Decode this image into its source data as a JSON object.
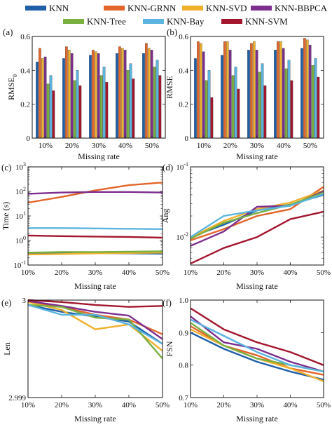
{
  "legend": {
    "entries": [
      {
        "name": "KNN",
        "color": "#1f5fa8"
      },
      {
        "name": "KNN-GRNN",
        "color": "#e3652a"
      },
      {
        "name": "KNN-SVD",
        "color": "#efb02c"
      },
      {
        "name": "KNN-BBPCA",
        "color": "#7d2e8e"
      },
      {
        "name": "KNN-Tree",
        "color": "#79b040"
      },
      {
        "name": "KNN-Bay",
        "color": "#5ab4df"
      },
      {
        "name": "KNN-SVM",
        "color": "#a3162d"
      }
    ]
  },
  "chart_data": [
    {
      "panel": "(a)",
      "type": "bar",
      "categories": [
        "10%",
        "20%",
        "30%",
        "40%",
        "50%"
      ],
      "xlabel": "Missing rate",
      "ylabel": "RMSE",
      "ylabel_subscript": "0",
      "ylim": [
        0,
        0.6
      ],
      "yticks": [
        0,
        0.2,
        0.4,
        0.6
      ],
      "yticklabels": [
        "0",
        "0.2",
        "0.4",
        "0.6"
      ],
      "series": [
        {
          "name": "KNN",
          "values": [
            0.45,
            0.47,
            0.49,
            0.5,
            0.5
          ]
        },
        {
          "name": "KNN-GRNN",
          "values": [
            0.53,
            0.54,
            0.52,
            0.54,
            0.56
          ]
        },
        {
          "name": "KNN-SVD",
          "values": [
            0.47,
            0.52,
            0.51,
            0.53,
            0.53
          ]
        },
        {
          "name": "KNN-BBPCA",
          "values": [
            0.48,
            0.5,
            0.5,
            0.52,
            0.52
          ]
        },
        {
          "name": "KNN-Tree",
          "values": [
            0.32,
            0.34,
            0.37,
            0.4,
            0.42
          ]
        },
        {
          "name": "KNN-Bay",
          "values": [
            0.37,
            0.4,
            0.42,
            0.44,
            0.46
          ]
        },
        {
          "name": "KNN-SVM",
          "values": [
            0.28,
            0.31,
            0.33,
            0.35,
            0.37
          ]
        }
      ]
    },
    {
      "panel": "(b)",
      "type": "bar",
      "categories": [
        "10%",
        "20%",
        "30%",
        "40%",
        "50%"
      ],
      "xlabel": "Missing rate",
      "ylabel": "RMSE",
      "ylim": [
        0,
        0.6
      ],
      "yticks": [
        0,
        0.2,
        0.4,
        0.6
      ],
      "yticklabels": [
        "0",
        "0.2",
        "0.4",
        "0.6"
      ],
      "series": [
        {
          "name": "KNN",
          "values": [
            0.47,
            0.49,
            0.52,
            0.52,
            0.53
          ]
        },
        {
          "name": "KNN-GRNN",
          "values": [
            0.57,
            0.57,
            0.56,
            0.57,
            0.59
          ]
        },
        {
          "name": "KNN-SVD",
          "values": [
            0.56,
            0.57,
            0.57,
            0.57,
            0.58
          ]
        },
        {
          "name": "KNN-BBPCA",
          "values": [
            0.51,
            0.52,
            0.52,
            0.53,
            0.55
          ]
        },
        {
          "name": "KNN-Tree",
          "values": [
            0.34,
            0.37,
            0.39,
            0.41,
            0.43
          ]
        },
        {
          "name": "KNN-Bay",
          "values": [
            0.4,
            0.42,
            0.44,
            0.46,
            0.47
          ]
        },
        {
          "name": "KNN-SVM",
          "values": [
            0.24,
            0.29,
            0.31,
            0.34,
            0.36
          ]
        }
      ]
    },
    {
      "panel": "(c)",
      "type": "line",
      "log_y": true,
      "x": [
        10,
        20,
        30,
        40,
        50
      ],
      "xticklabels": [
        "10%",
        "20%",
        "30%",
        "40%",
        "50%"
      ],
      "xlabel": "Missing rate",
      "ylabel": "Time (s)",
      "ylim": [
        0.1,
        1000
      ],
      "yticks": [
        0.1,
        1,
        10,
        100,
        1000
      ],
      "yticklabels": [
        "10^-1",
        "10^0",
        "10^1",
        "10^2",
        "10^3"
      ],
      "series": [
        {
          "name": "KNN",
          "values": [
            0.3,
            0.31,
            0.31,
            0.3,
            0.29
          ]
        },
        {
          "name": "KNN-GRNN",
          "values": [
            35,
            60,
            110,
            180,
            230
          ]
        },
        {
          "name": "KNN-SVD",
          "values": [
            0.27,
            0.28,
            0.3,
            0.31,
            0.32
          ]
        },
        {
          "name": "KNN-BBPCA",
          "values": [
            80,
            90,
            95,
            95,
            90
          ]
        },
        {
          "name": "KNN-Tree",
          "values": [
            0.32,
            0.34,
            0.34,
            0.35,
            0.36
          ]
        },
        {
          "name": "KNN-Bay",
          "values": [
            3.2,
            3.2,
            3.1,
            3.0,
            2.9
          ]
        },
        {
          "name": "KNN-SVM",
          "values": [
            1.6,
            1.5,
            1.45,
            1.4,
            1.3
          ]
        }
      ]
    },
    {
      "panel": "(d)",
      "type": "line",
      "log_y": true,
      "x": [
        10,
        20,
        30,
        40,
        50
      ],
      "xticklabels": [
        "10%",
        "20%",
        "30%",
        "40%",
        "50%"
      ],
      "xlabel": "Missing rate",
      "ylabel": "Ang",
      "ylim": [
        0.004,
        0.1
      ],
      "yticks": [
        0.01,
        0.1
      ],
      "yticklabels": [
        "10^-2",
        "10^-1"
      ],
      "series": [
        {
          "name": "KNN",
          "values": [
            0.01,
            0.015,
            0.024,
            0.029,
            0.04
          ]
        },
        {
          "name": "KNN-GRNN",
          "values": [
            0.009,
            0.013,
            0.02,
            0.025,
            0.052
          ]
        },
        {
          "name": "KNN-SVD",
          "values": [
            0.0098,
            0.017,
            0.025,
            0.031,
            0.046
          ]
        },
        {
          "name": "KNN-BBPCA",
          "values": [
            0.0075,
            0.012,
            0.027,
            0.028,
            0.045
          ]
        },
        {
          "name": "KNN-Tree",
          "values": [
            0.0095,
            0.016,
            0.022,
            0.029,
            0.043
          ]
        },
        {
          "name": "KNN-Bay",
          "values": [
            0.01,
            0.02,
            0.024,
            0.028,
            0.041
          ]
        },
        {
          "name": "KNN-SVM",
          "values": [
            0.0042,
            0.007,
            0.01,
            0.018,
            0.023
          ]
        }
      ]
    },
    {
      "panel": "(e)",
      "type": "line",
      "x": [
        10,
        20,
        30,
        40,
        50
      ],
      "xticklabels": [
        "10%",
        "20%",
        "30%",
        "40%",
        "50%"
      ],
      "xlabel": "Missing rate",
      "ylabel": "Len",
      "ylim": [
        2.999,
        3.0
      ],
      "yticks": [
        2.999,
        3.0
      ],
      "yticklabels": [
        "2.999",
        "3"
      ],
      "series": [
        {
          "name": "KNN",
          "values": [
            2.99995,
            2.99988,
            2.99983,
            2.99978,
            2.99955
          ]
        },
        {
          "name": "KNN-GRNN",
          "values": [
            2.99998,
            2.99993,
            2.99985,
            2.9998,
            2.99965
          ]
        },
        {
          "name": "KNN-SVD",
          "values": [
            2.99998,
            2.9999,
            2.9997,
            2.99975,
            2.99948
          ]
        },
        {
          "name": "KNN-BBPCA",
          "values": [
            2.99999,
            2.99994,
            2.99988,
            2.99984,
            2.9996
          ]
        },
        {
          "name": "KNN-Tree",
          "values": [
            2.99995,
            2.99993,
            2.99982,
            2.9998,
            2.9994
          ]
        },
        {
          "name": "KNN-Bay",
          "values": [
            2.99995,
            2.99985,
            2.99985,
            2.99975,
            2.99955
          ]
        },
        {
          "name": "KNN-SVM",
          "values": [
            3.0,
            2.99998,
            2.99995,
            2.99993,
            2.99994
          ]
        }
      ]
    },
    {
      "panel": "(f)",
      "type": "line",
      "x": [
        10,
        20,
        30,
        40,
        50
      ],
      "xticklabels": [
        "10%",
        "20%",
        "30%",
        "40%",
        "50%"
      ],
      "xlabel": "Missing rate",
      "ylabel": "FSN",
      "ylim": [
        0.7,
        1.0
      ],
      "yticks": [
        0.7,
        0.8,
        0.9,
        1.0
      ],
      "yticklabels": [
        "0.7",
        "0.8",
        "0.9",
        "1.0"
      ],
      "series": [
        {
          "name": "KNN",
          "values": [
            0.9,
            0.85,
            0.81,
            0.78,
            0.755
          ]
        },
        {
          "name": "KNN-GRNN",
          "values": [
            0.92,
            0.86,
            0.83,
            0.79,
            0.77
          ]
        },
        {
          "name": "KNN-SVD",
          "values": [
            0.91,
            0.86,
            0.82,
            0.79,
            0.75
          ]
        },
        {
          "name": "KNN-BBPCA",
          "values": [
            0.95,
            0.87,
            0.85,
            0.81,
            0.78
          ]
        },
        {
          "name": "KNN-Tree",
          "values": [
            0.93,
            0.86,
            0.82,
            0.8,
            0.78
          ]
        },
        {
          "name": "KNN-Bay",
          "values": [
            0.94,
            0.89,
            0.84,
            0.8,
            0.78
          ]
        },
        {
          "name": "KNN-SVM",
          "values": [
            0.975,
            0.91,
            0.87,
            0.84,
            0.8
          ]
        }
      ]
    }
  ]
}
